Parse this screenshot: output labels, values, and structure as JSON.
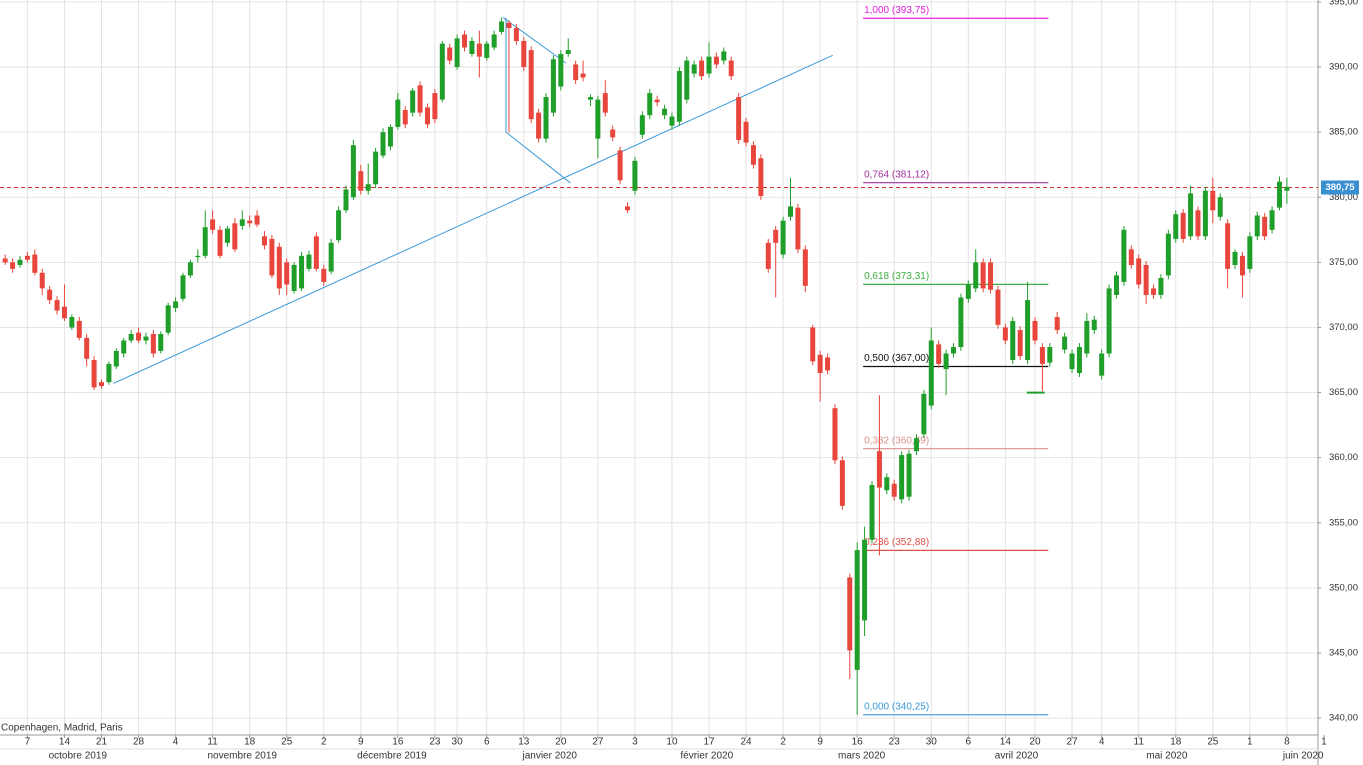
{
  "chart_data": {
    "type": "candlestick",
    "footnote": "Copenhagen, Madrid, Paris",
    "up_color": "#1f9e2a",
    "down_color": "#e8453c",
    "grid": true,
    "xlim": [
      -0.7,
      177.2
    ],
    "ylim": [
      338.7,
      395.15
    ],
    "yticks": [
      {
        "value": 340,
        "label": "340,00"
      },
      {
        "value": 345,
        "label": "345,00"
      },
      {
        "value": 350,
        "label": "350,00"
      },
      {
        "value": 355,
        "label": "355,00"
      },
      {
        "value": 360,
        "label": "360,00"
      },
      {
        "value": 365,
        "label": "365,00"
      },
      {
        "value": 370,
        "label": "370,00"
      },
      {
        "value": 375,
        "label": "375,00"
      },
      {
        "value": 380,
        "label": "380,00"
      },
      {
        "value": 385,
        "label": "385,00"
      },
      {
        "value": 390,
        "label": "390,00"
      },
      {
        "value": 395,
        "label": "395,00"
      }
    ],
    "xticks": [
      {
        "value": 3,
        "label": "7"
      },
      {
        "value": 8,
        "label": "14"
      },
      {
        "value": 13,
        "label": "21"
      },
      {
        "value": 18,
        "label": "28"
      },
      {
        "value": 23,
        "label": "4"
      },
      {
        "value": 28,
        "label": "11"
      },
      {
        "value": 33,
        "label": "18"
      },
      {
        "value": 38,
        "label": "25"
      },
      {
        "value": 43,
        "label": "2"
      },
      {
        "value": 48,
        "label": "9"
      },
      {
        "value": 53,
        "label": "16"
      },
      {
        "value": 58,
        "label": "23"
      },
      {
        "value": 61,
        "label": "30"
      },
      {
        "value": 65,
        "label": "6"
      },
      {
        "value": 70,
        "label": "13"
      },
      {
        "value": 75,
        "label": "20"
      },
      {
        "value": 80,
        "label": "27"
      },
      {
        "value": 85,
        "label": "3"
      },
      {
        "value": 90,
        "label": "10"
      },
      {
        "value": 95,
        "label": "17"
      },
      {
        "value": 100,
        "label": "24"
      },
      {
        "value": 105,
        "label": "2"
      },
      {
        "value": 110,
        "label": "9"
      },
      {
        "value": 115,
        "label": "16"
      },
      {
        "value": 120,
        "label": "23"
      },
      {
        "value": 125,
        "label": "30"
      },
      {
        "value": 130,
        "label": "6"
      },
      {
        "value": 135,
        "label": "14"
      },
      {
        "value": 139,
        "label": "20"
      },
      {
        "value": 144,
        "label": "27"
      },
      {
        "value": 148,
        "label": "4"
      },
      {
        "value": 153,
        "label": "11"
      },
      {
        "value": 158,
        "label": "18"
      },
      {
        "value": 163,
        "label": "25"
      },
      {
        "value": 168,
        "label": "1"
      },
      {
        "value": 173,
        "label": "8"
      },
      {
        "value": 178,
        "label": "1"
      }
    ],
    "month_labels": [
      {
        "value": 9.8,
        "label": "octobre 2019"
      },
      {
        "value": 32,
        "label": "novembre 2019"
      },
      {
        "value": 52.2,
        "label": "décembre 2019"
      },
      {
        "value": 73.5,
        "label": "janvier 2020"
      },
      {
        "value": 94.7,
        "label": "février 2020"
      },
      {
        "value": 115.6,
        "label": "mars 2020"
      },
      {
        "value": 136.5,
        "label": "avril 2020"
      },
      {
        "value": 156.8,
        "label": "mai 2020"
      },
      {
        "value": 175.2,
        "label": "juin 2020"
      }
    ],
    "open": [
      375.3,
      375.0,
      374.8,
      375.5,
      375.6,
      374.2,
      372.9,
      372.1,
      371.6,
      370.0,
      370.5,
      369.2,
      367.5,
      365.8,
      365.8,
      367.0,
      368.0,
      369.0,
      369.6,
      369.0,
      369.5,
      368.2,
      369.6,
      371.5,
      372.2,
      374.0,
      375.4,
      375.5,
      378.3,
      377.5,
      376.5,
      378.0,
      377.8,
      378.2,
      378.6,
      377.0,
      376.8,
      376.2,
      375.0,
      372.8,
      373.0,
      374.5,
      377.0,
      374.5,
      374.3,
      376.7,
      379.0,
      380.0,
      382.0,
      380.5,
      381.0,
      383.2,
      383.9,
      385.4,
      386.7,
      386.5,
      388.6,
      386.9,
      388.0,
      387.5,
      391.5,
      390.0,
      392.5,
      391.0,
      391.8,
      390.7,
      391.5,
      392.7,
      393.4,
      393.0,
      392.0,
      391.3,
      386.5,
      384.5,
      386.5,
      388.5,
      391.0,
      390.2,
      389.5,
      387.5,
      384.5,
      388.0,
      385.2,
      383.6,
      379.3,
      380.5,
      384.8,
      386.3,
      387.5,
      386.3,
      385.5,
      385.8,
      387.5,
      389.5,
      390.5,
      389.5,
      390.8,
      390.5,
      390.5,
      387.7,
      385.8,
      384.0,
      383.0,
      376.5,
      377.5,
      375.6,
      378.5,
      379.2,
      376.0,
      370.0,
      367.9,
      367.7,
      363.8,
      359.8,
      350.8,
      343.7,
      347.5,
      353.7,
      360.5,
      357.5,
      358.0,
      356.8,
      357.0,
      360.5,
      361.8,
      364.0,
      368.7,
      366.8,
      368.0,
      368.5,
      372.2,
      373.0,
      375.0,
      375.0,
      372.9,
      370.0,
      367.5,
      369.8,
      367.5,
      370.5,
      368.5,
      367.3,
      370.8,
      368.3,
      366.8,
      366.5,
      368.0,
      369.8,
      366.3,
      368.0,
      372.5,
      373.5,
      376.0,
      375.3,
      374.8,
      373.0,
      372.5,
      374.0,
      376.8,
      378.8,
      377.0,
      379.0,
      377.0,
      380.5,
      378.5,
      378.0,
      374.8,
      375.5,
      374.5,
      377.0,
      378.5,
      377.5,
      379.2,
      380.5
    ],
    "high": [
      375.6,
      375.3,
      375.5,
      375.8,
      376.0,
      374.5,
      373.2,
      372.4,
      373.3,
      371.0,
      370.8,
      369.5,
      367.8,
      366.0,
      367.4,
      368.4,
      369.2,
      369.8,
      370.0,
      369.6,
      369.8,
      369.7,
      371.9,
      372.3,
      374.2,
      375.2,
      376.0,
      379.0,
      379.0,
      377.8,
      377.8,
      378.4,
      379.0,
      378.6,
      379.0,
      377.4,
      377.1,
      376.5,
      375.3,
      375.0,
      375.8,
      375.9,
      377.3,
      374.8,
      376.8,
      379.3,
      380.9,
      384.4,
      382.5,
      382.6,
      383.8,
      385.3,
      385.6,
      388.0,
      387.0,
      388.4,
      388.9,
      387.2,
      388.3,
      392.0,
      391.8,
      392.5,
      392.8,
      392.3,
      392.8,
      392.0,
      392.8,
      393.8,
      393.6,
      393.3,
      392.3,
      391.6,
      386.8,
      388.0,
      390.9,
      391.3,
      392.2,
      390.5,
      390.5,
      387.9,
      387.8,
      389.0,
      385.5,
      383.9,
      379.6,
      383.1,
      386.6,
      388.3,
      387.8,
      387.1,
      386.5,
      390.0,
      390.8,
      390.5,
      390.8,
      391.9,
      391.1,
      391.5,
      390.8,
      388.0,
      386.1,
      384.3,
      383.3,
      376.8,
      377.8,
      378.5,
      381.5,
      379.5,
      376.3,
      370.2,
      368.2,
      368.0,
      364.1,
      360.1,
      351.1,
      353.5,
      354.7,
      358.2,
      364.8,
      358.8,
      358.3,
      360.5,
      360.6,
      361.8,
      365.2,
      370.0,
      369.0,
      368.3,
      368.8,
      372.6,
      373.6,
      376.0,
      375.3,
      375.3,
      373.2,
      370.3,
      370.8,
      370.1,
      373.5,
      370.8,
      368.8,
      368.8,
      371.2,
      369.6,
      368.3,
      368.8,
      371.1,
      370.9,
      368.3,
      373.3,
      374.3,
      377.8,
      376.3,
      375.6,
      375.1,
      373.3,
      374.1,
      377.5,
      379.0,
      379.1,
      380.9,
      379.3,
      380.8,
      381.5,
      380.3,
      378.3,
      376.0,
      375.8,
      377.3,
      378.9,
      378.8,
      379.3,
      381.6,
      381.5
    ],
    "low": [
      374.8,
      374.2,
      374.6,
      375.0,
      374.0,
      372.5,
      371.8,
      371.0,
      370.5,
      369.8,
      369.0,
      367.0,
      365.2,
      365.3,
      365.6,
      366.8,
      367.7,
      368.8,
      368.8,
      368.7,
      367.7,
      368.0,
      369.4,
      371.2,
      372.0,
      373.8,
      375.0,
      375.3,
      377.2,
      375.3,
      376.2,
      375.8,
      377.5,
      377.7,
      377.7,
      376.0,
      373.8,
      372.5,
      372.5,
      372.6,
      372.8,
      374.3,
      374.3,
      373.2,
      374.1,
      376.5,
      378.8,
      379.8,
      380.2,
      380.2,
      380.7,
      383.0,
      383.6,
      385.2,
      385.3,
      386.2,
      386.2,
      385.3,
      385.7,
      387.3,
      390.2,
      389.8,
      391.2,
      390.8,
      389.2,
      390.5,
      391.3,
      392.5,
      385.0,
      391.7,
      389.7,
      385.7,
      384.2,
      384.2,
      386.2,
      388.2,
      390.8,
      388.7,
      388.9,
      387.0,
      383.0,
      386.2,
      384.3,
      381.0,
      378.8,
      380.2,
      384.5,
      386.0,
      387.0,
      386.0,
      385.2,
      385.5,
      387.2,
      389.2,
      389.0,
      389.2,
      389.9,
      390.2,
      389.0,
      384.1,
      383.9,
      382.2,
      379.8,
      374.2,
      372.3,
      375.3,
      378.2,
      375.7,
      372.7,
      367.1,
      364.3,
      366.4,
      359.5,
      356.0,
      343.0,
      340.25,
      346.3,
      353.4,
      352.5,
      357.2,
      356.7,
      356.5,
      356.7,
      360.2,
      361.5,
      363.7,
      366.9,
      364.8,
      367.7,
      368.2,
      371.9,
      372.7,
      372.7,
      372.6,
      369.9,
      368.7,
      367.2,
      367.5,
      367.2,
      368.7,
      365.1,
      367.0,
      369.5,
      368.0,
      366.5,
      366.2,
      367.7,
      369.5,
      366.0,
      367.7,
      372.2,
      373.2,
      374.5,
      373.0,
      371.8,
      372.2,
      372.2,
      373.7,
      376.5,
      376.5,
      376.7,
      376.7,
      376.7,
      378.0,
      378.2,
      373.0,
      374.5,
      372.3,
      374.2,
      376.7,
      376.7,
      377.2,
      379.0,
      379.5
    ],
    "close": [
      375.0,
      374.5,
      375.2,
      375.2,
      374.2,
      373.0,
      372.1,
      371.3,
      370.7,
      370.8,
      369.2,
      367.6,
      365.4,
      365.5,
      367.2,
      368.2,
      369.0,
      369.5,
      369.0,
      369.3,
      368.0,
      369.5,
      371.7,
      372.0,
      374.0,
      375.0,
      375.5,
      377.7,
      377.5,
      375.5,
      377.6,
      376.0,
      378.3,
      378.0,
      377.9,
      376.3,
      374.0,
      373.0,
      373.3,
      374.8,
      375.5,
      375.6,
      374.5,
      373.5,
      376.5,
      379.0,
      380.6,
      384.0,
      380.5,
      381.0,
      383.5,
      385.0,
      385.4,
      387.5,
      385.6,
      388.2,
      386.5,
      385.6,
      386.0,
      391.8,
      390.5,
      392.2,
      391.5,
      392.0,
      390.8,
      391.8,
      392.5,
      393.5,
      393.0,
      392.0,
      390.0,
      386.0,
      384.5,
      387.7,
      390.6,
      391.0,
      391.3,
      389.0,
      389.2,
      387.7,
      387.5,
      386.5,
      384.6,
      381.3,
      379.0,
      382.8,
      386.3,
      388.0,
      387.3,
      386.8,
      386.2,
      389.7,
      390.5,
      390.2,
      389.3,
      390.8,
      390.2,
      391.2,
      389.3,
      384.4,
      384.2,
      382.5,
      380.1,
      374.5,
      376.5,
      378.2,
      379.3,
      376.0,
      373.2,
      367.4,
      366.5,
      366.7,
      359.8,
      356.3,
      345.2,
      352.9,
      353.7,
      357.9,
      357.7,
      358.5,
      357.0,
      360.2,
      360.3,
      361.5,
      364.9,
      369.0,
      367.2,
      368.0,
      368.5,
      372.3,
      373.3,
      375.0,
      373.0,
      372.9,
      370.2,
      369.0,
      370.5,
      367.8,
      372.1,
      369.0,
      367.2,
      368.5,
      369.8,
      369.3,
      368.0,
      368.5,
      370.5,
      370.6,
      368.0,
      373.0,
      374.0,
      377.5,
      374.8,
      373.3,
      372.5,
      372.5,
      373.8,
      377.2,
      378.7,
      376.8,
      380.3,
      377.0,
      380.5,
      379.0,
      380.0,
      374.5,
      375.8,
      374.0,
      377.0,
      378.6,
      377.0,
      379.0,
      381.2,
      380.8
    ],
    "last_price": {
      "value": 380.75,
      "label": "380,75",
      "color": "#d9342b",
      "box_color": "#3a8fd0"
    },
    "trend_lines": [
      {
        "color": "#3a9ad9",
        "x": [
          14.6,
          111.7
        ],
        "y": [
          365.7,
          390.9
        ]
      },
      {
        "color": "#3a9ad9",
        "x": [
          67.2,
          75.7
        ],
        "y": [
          393.8,
          390.3
        ]
      },
      {
        "color": "#3a9ad9",
        "x": [
          67.6,
          67.6,
          76.3
        ],
        "y": [
          393.8,
          385.0,
          381.1
        ]
      },
      {
        "color": "#1f9e2a",
        "x": [
          137.9,
          140.3
        ],
        "y": [
          365.0,
          365.0
        ]
      }
    ],
    "fibonacci": {
      "x": [
        115.8,
        140.8
      ],
      "levels": [
        {
          "value": 340.25,
          "label": "0,000 (340,25)",
          "color": "#3a9ad9"
        },
        {
          "value": 352.88,
          "label": "0,236 (352,88)",
          "color": "#e0504a"
        },
        {
          "value": 360.69,
          "label": "0,382 (360,69)",
          "color": "#d99090"
        },
        {
          "value": 367.0,
          "label": "0,500 (367,00)",
          "color": "#111111"
        },
        {
          "value": 373.31,
          "label": "0,618 (373,31)",
          "color": "#3cb043"
        },
        {
          "value": 381.12,
          "label": "0,764 (381,12)",
          "color": "#a0309a"
        },
        {
          "value": 393.75,
          "label": "1,000 (393,75)",
          "color": "#e020e0"
        }
      ]
    }
  }
}
